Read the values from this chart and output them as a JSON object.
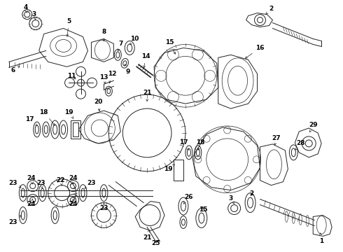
{
  "bg_color": "#ffffff",
  "line_color": "#222222",
  "label_color": "#000000",
  "figsize": [
    4.9,
    3.6
  ],
  "dpi": 100,
  "lw": 0.7
}
